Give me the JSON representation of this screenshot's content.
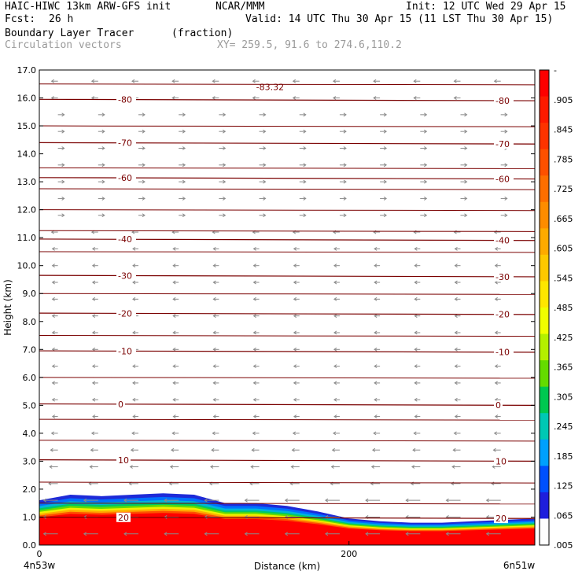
{
  "header": {
    "model": "HAIC-HIWC 13km ARW-GFS init",
    "org": "NCAR/MMM",
    "init": "Init: 12 UTC Wed 29 Apr 15",
    "fcst_label": "Fcst:",
    "fcst_value": "26 h",
    "valid": "Valid: 14 UTC Thu 30 Apr 15 (11 LST Thu 30 Apr 15)",
    "field1": "Boundary Layer Tracer",
    "field1_units": "(fraction)",
    "field2": "Circulation vectors",
    "xy": "XY= 259.5, 91.6 to 274.6,110.2"
  },
  "chart_data": {
    "type": "heatmap",
    "ylabel": "Height (km)",
    "xlabel": "Distance (km)",
    "xlim": [
      0,
      320
    ],
    "ylim": [
      0,
      17
    ],
    "yticks": [
      "0.0",
      "1.0",
      "2.0",
      "3.0",
      "4.0",
      "5.0",
      "6.0",
      "7.0",
      "8.0",
      "9.0",
      "10.0",
      "11.0",
      "12.0",
      "13.0",
      "14.0",
      "15.0",
      "16.0",
      "17.0"
    ],
    "xticks": [
      "0",
      "200"
    ],
    "x_endpoints": {
      "left": "4n53w",
      "right": "6n51w"
    },
    "colorbar": {
      "labels": [
        "-",
        ".905",
        ".845",
        ".785",
        ".725",
        ".665",
        ".605",
        ".545",
        ".485",
        ".425",
        ".365",
        ".305",
        ".245",
        ".185",
        ".125",
        ".065",
        ".005"
      ],
      "colors": [
        "#ff0000",
        "#ff1a00",
        "#ff3300",
        "#ff5000",
        "#ff6e00",
        "#ff8c00",
        "#ffaa00",
        "#ffc800",
        "#ffe600",
        "#f0ff00",
        "#b4f000",
        "#64dc00",
        "#00c850",
        "#00c8b4",
        "#00a0ff",
        "#0050ff",
        "#1e1edc",
        "#ffffff"
      ]
    },
    "tracer_top": [
      {
        "x": 0,
        "h": 1.6
      },
      {
        "x": 20,
        "h": 1.8
      },
      {
        "x": 40,
        "h": 1.75
      },
      {
        "x": 60,
        "h": 1.8
      },
      {
        "x": 80,
        "h": 1.85
      },
      {
        "x": 100,
        "h": 1.8
      },
      {
        "x": 120,
        "h": 1.5
      },
      {
        "x": 140,
        "h": 1.5
      },
      {
        "x": 160,
        "h": 1.4
      },
      {
        "x": 180,
        "h": 1.2
      },
      {
        "x": 200,
        "h": 0.95
      },
      {
        "x": 220,
        "h": 0.85
      },
      {
        "x": 240,
        "h": 0.8
      },
      {
        "x": 260,
        "h": 0.8
      },
      {
        "x": 280,
        "h": 0.85
      },
      {
        "x": 300,
        "h": 0.9
      },
      {
        "x": 320,
        "h": 0.95
      }
    ],
    "isotherms": [
      {
        "value": 20,
        "label": "20",
        "h": 1.0
      },
      {
        "value": 10,
        "label": "10",
        "h": 3.05
      },
      {
        "value": 0,
        "label": "0",
        "h": 5.05
      },
      {
        "value": -10,
        "label": "-10",
        "h": 6.95
      },
      {
        "value": -20,
        "label": "-20",
        "h": 8.3
      },
      {
        "value": -30,
        "label": "-30",
        "h": 9.65
      },
      {
        "value": -40,
        "label": "-40",
        "h": 10.95
      },
      {
        "value": -60,
        "label": "-60",
        "h": 13.15
      },
      {
        "value": -70,
        "label": "-70",
        "h": 14.4
      },
      {
        "value": -80,
        "label": "-80",
        "h": 15.95
      }
    ],
    "minimum_label": "-83.32",
    "minimum_x": 140,
    "minimum_h": 16.4
  }
}
